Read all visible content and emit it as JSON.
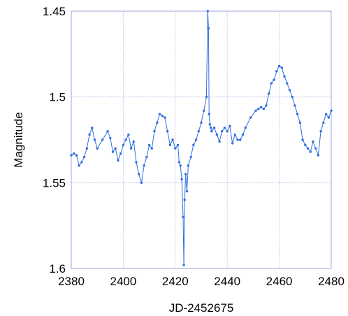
{
  "chart_data": {
    "type": "scatter",
    "title": "",
    "xlabel": "JD-2452675",
    "ylabel": "Magnitude",
    "xlim": [
      2380,
      2480
    ],
    "ylim": [
      1.45,
      1.6
    ],
    "y_inverted": true,
    "grid": true,
    "x_ticks": [
      "2380",
      "2400",
      "2420",
      "2440",
      "2460",
      "2480"
    ],
    "x_tick_values": [
      2380,
      2400,
      2420,
      2440,
      2460,
      2480
    ],
    "y_ticks": [
      "1.45",
      "1.5",
      "1.55",
      "1.6"
    ],
    "y_tick_values": [
      1.45,
      1.5,
      1.55,
      1.6
    ],
    "colors": {
      "series": "#2f6fe0",
      "grid": "#b4b4e6",
      "frame": "#a0a0dc"
    },
    "series": [
      {
        "marker": "dot-with-connecting-line",
        "x": [
          2380,
          2381,
          2382,
          2383,
          2384,
          2385,
          2386,
          2387,
          2388,
          2389,
          2390,
          2392,
          2394,
          2395,
          2396,
          2397,
          2398,
          2399,
          2400,
          2401,
          2402,
          2403,
          2404,
          2405,
          2406,
          2407,
          2408,
          2409,
          2410,
          2411,
          2412,
          2413,
          2414,
          2415,
          2416,
          2417,
          2418,
          2419,
          2420,
          2421,
          2421.5,
          2422,
          2422.5,
          2423,
          2423.3,
          2423.6,
          2424,
          2424.5,
          2425,
          2426,
          2427,
          2428,
          2429,
          2430,
          2431,
          2432,
          2432.5,
          2432.8,
          2433,
          2433.3,
          2433.7,
          2434,
          2435,
          2436,
          2437,
          2438,
          2439,
          2440,
          2441,
          2442,
          2443,
          2444,
          2445,
          2446,
          2447,
          2449,
          2451,
          2452,
          2453,
          2454,
          2455,
          2456,
          2457,
          2458,
          2459,
          2460,
          2461,
          2462,
          2463,
          2464,
          2465,
          2466,
          2467,
          2468,
          2469,
          2470,
          2471,
          2472,
          2473,
          2474,
          2475,
          2476,
          2477,
          2478,
          2479,
          2480
        ],
        "y": [
          1.534,
          1.533,
          1.534,
          1.54,
          1.538,
          1.535,
          1.53,
          1.522,
          1.518,
          1.525,
          1.53,
          1.525,
          1.52,
          1.524,
          1.532,
          1.53,
          1.537,
          1.533,
          1.528,
          1.525,
          1.522,
          1.53,
          1.526,
          1.538,
          1.545,
          1.55,
          1.54,
          1.535,
          1.528,
          1.53,
          1.52,
          1.515,
          1.51,
          1.511,
          1.512,
          1.52,
          1.528,
          1.525,
          1.53,
          1.528,
          1.538,
          1.54,
          1.548,
          1.57,
          1.598,
          1.56,
          1.545,
          1.555,
          1.54,
          1.535,
          1.528,
          1.525,
          1.52,
          1.515,
          1.508,
          1.5,
          1.45,
          1.46,
          1.51,
          1.516,
          1.518,
          1.52,
          1.518,
          1.522,
          1.526,
          1.52,
          1.518,
          1.52,
          1.517,
          1.527,
          1.522,
          1.525,
          1.525,
          1.522,
          1.518,
          1.512,
          1.508,
          1.507,
          1.506,
          1.507,
          1.505,
          1.498,
          1.492,
          1.49,
          1.485,
          1.482,
          1.483,
          1.488,
          1.492,
          1.496,
          1.5,
          1.505,
          1.51,
          1.515,
          1.525,
          1.528,
          1.53,
          1.532,
          1.526,
          1.53,
          1.534,
          1.52,
          1.515,
          1.51,
          1.512,
          1.508
        ]
      }
    ]
  }
}
